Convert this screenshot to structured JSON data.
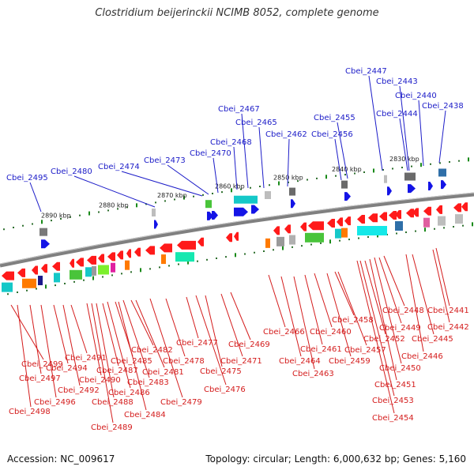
{
  "header": {
    "title": "Clostridium beijerinckii NCIMB 8052, complete genome"
  },
  "footer": {
    "accession": "Accession: NC_009617",
    "stats": "Topology: circular; Length: 6,000,632 bp; Genes: 5,160"
  },
  "kbp_ticks": [
    {
      "text": "2890 kbp"
    },
    {
      "text": "2880 kbp"
    },
    {
      "text": "2870 kbp"
    },
    {
      "text": "2860 kbp"
    },
    {
      "text": "2850 kbp"
    },
    {
      "text": "2840 kbp"
    },
    {
      "text": "2830 kbp"
    }
  ],
  "plus_labels": [
    "Cbei_2495",
    "Cbei_2480",
    "Cbei_2474",
    "Cbei_2473",
    "Cbei_2470",
    "Cbei_2468",
    "Cbei_2467",
    "Cbei_2465",
    "Cbei_2462",
    "Cbei_2456",
    "Cbei_2455",
    "Cbei_2447",
    "Cbei_2444",
    "Cbei_2443",
    "Cbei_2440",
    "Cbei_2438"
  ],
  "minus_labels": [
    "Cbei_2499",
    "Cbei_2498",
    "Cbei_2497",
    "Cbei_2496",
    "Cbei_2494",
    "Cbei_2492",
    "Cbei_2491",
    "Cbei_2490",
    "Cbei_2489",
    "Cbei_2488",
    "Cbei_2487",
    "Cbei_2486",
    "Cbei_2485",
    "Cbei_2484",
    "Cbei_2483",
    "Cbei_2482",
    "Cbei_2481",
    "Cbei_2479",
    "Cbei_2478",
    "Cbei_2477",
    "Cbei_2476",
    "Cbei_2475",
    "Cbei_2471",
    "Cbei_2469",
    "Cbei_2466",
    "Cbei_2464",
    "Cbei_2463",
    "Cbei_2461",
    "Cbei_2460",
    "Cbei_2459",
    "Cbei_2458",
    "Cbei_2457",
    "Cbei_2454",
    "Cbei_2453",
    "Cbei_2452",
    "Cbei_2451",
    "Cbei_2450",
    "Cbei_2449",
    "Cbei_2448",
    "Cbei_2446",
    "Cbei_2445",
    "Cbei_2442",
    "Cbei_2441"
  ]
}
